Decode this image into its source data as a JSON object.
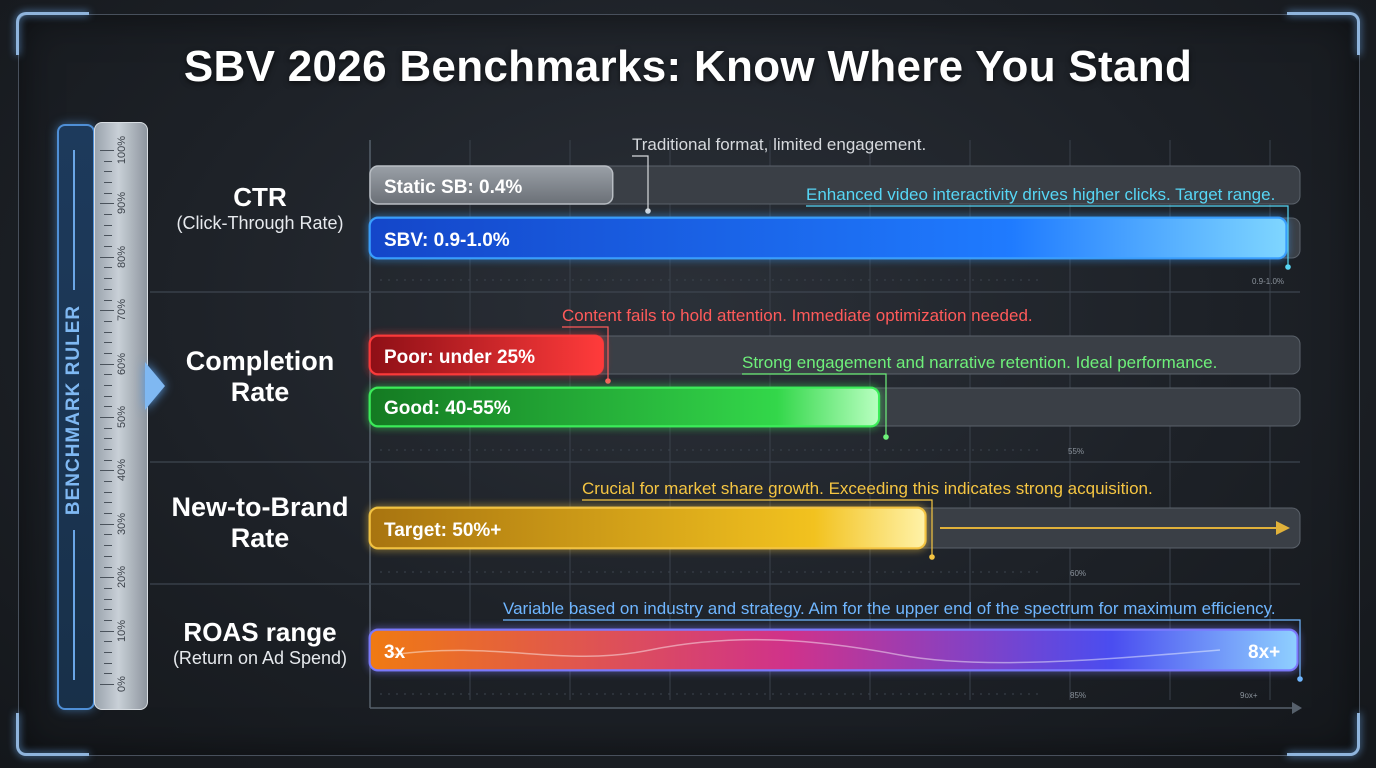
{
  "title": "SBV 2026 Benchmarks: Know Where You Stand",
  "ruler": {
    "label": "BENCHMARK RULER",
    "ticks": [
      "0%",
      "10%",
      "20%",
      "30%",
      "40%",
      "50%",
      "60%",
      "70%",
      "80%",
      "90%",
      "100%"
    ]
  },
  "categories": [
    {
      "name": "CTR",
      "subtitle": "(Click-Through Rate)"
    },
    {
      "name": "Completion Rate",
      "subtitle": ""
    },
    {
      "name": "New-to-Brand Rate",
      "subtitle": ""
    },
    {
      "name": "ROAS range",
      "subtitle": "(Return on Ad Spend)"
    }
  ],
  "colors": {
    "static": "#8a8f96",
    "sbv": "#1f6fff",
    "poor": "#e0262f",
    "good": "#2fcf44",
    "target": "#e6b01f",
    "roas_start": "#f07a12",
    "roas_mid": "#d0328a",
    "roas_end": "#4a4df0",
    "annotation_static": "#d6d9dd",
    "annotation_sbv": "#56d6f5",
    "annotation_poor": "#ff5a5a",
    "annotation_good": "#6ef07a",
    "annotation_target": "#f5c542",
    "annotation_roas": "#6fb6ff"
  },
  "chart_data": {
    "type": "bar",
    "orientation": "horizontal",
    "grid": true,
    "groups": [
      {
        "category": "CTR",
        "bars": [
          {
            "label": "Static SB: 0.4%",
            "fill": 0.29,
            "annotation": "Traditional format, limited engagement.",
            "color_key": "static"
          },
          {
            "label": "SBV: 0.9-1.0%",
            "fill": 1.0,
            "annotation": "Enhanced video interactivity drives higher clicks. Target range.",
            "color_key": "sbv"
          }
        ],
        "marker_text": "0.9-1.0%"
      },
      {
        "category": "Completion Rate",
        "bars": [
          {
            "label": "Poor: under 25%",
            "fill": 0.25,
            "annotation": "Content fails to hold attention. Immediate optimization needed.",
            "color_key": "poor"
          },
          {
            "label": "Good: 40-55%",
            "fill": 0.55,
            "annotation": "Strong engagement and narrative retention. Ideal performance.",
            "color_key": "good"
          }
        ],
        "marker_text": "55%"
      },
      {
        "category": "New-to-Brand Rate",
        "bars": [
          {
            "label": "Target: 50%+",
            "fill": 0.6,
            "annotation": "Crucial for market share growth. Exceeding this indicates strong acquisition.",
            "color_key": "target"
          }
        ],
        "marker_text": "60%"
      },
      {
        "category": "ROAS range",
        "bars": [
          {
            "label": "3x",
            "end_label": "8x+",
            "fill": 1.0,
            "annotation": "Variable based on industry and strategy. Aim for the upper end of the spectrum for maximum efficiency.",
            "color_key": "roas"
          }
        ],
        "marker_text": "85%",
        "marker_text_2": "9ox+"
      }
    ]
  }
}
